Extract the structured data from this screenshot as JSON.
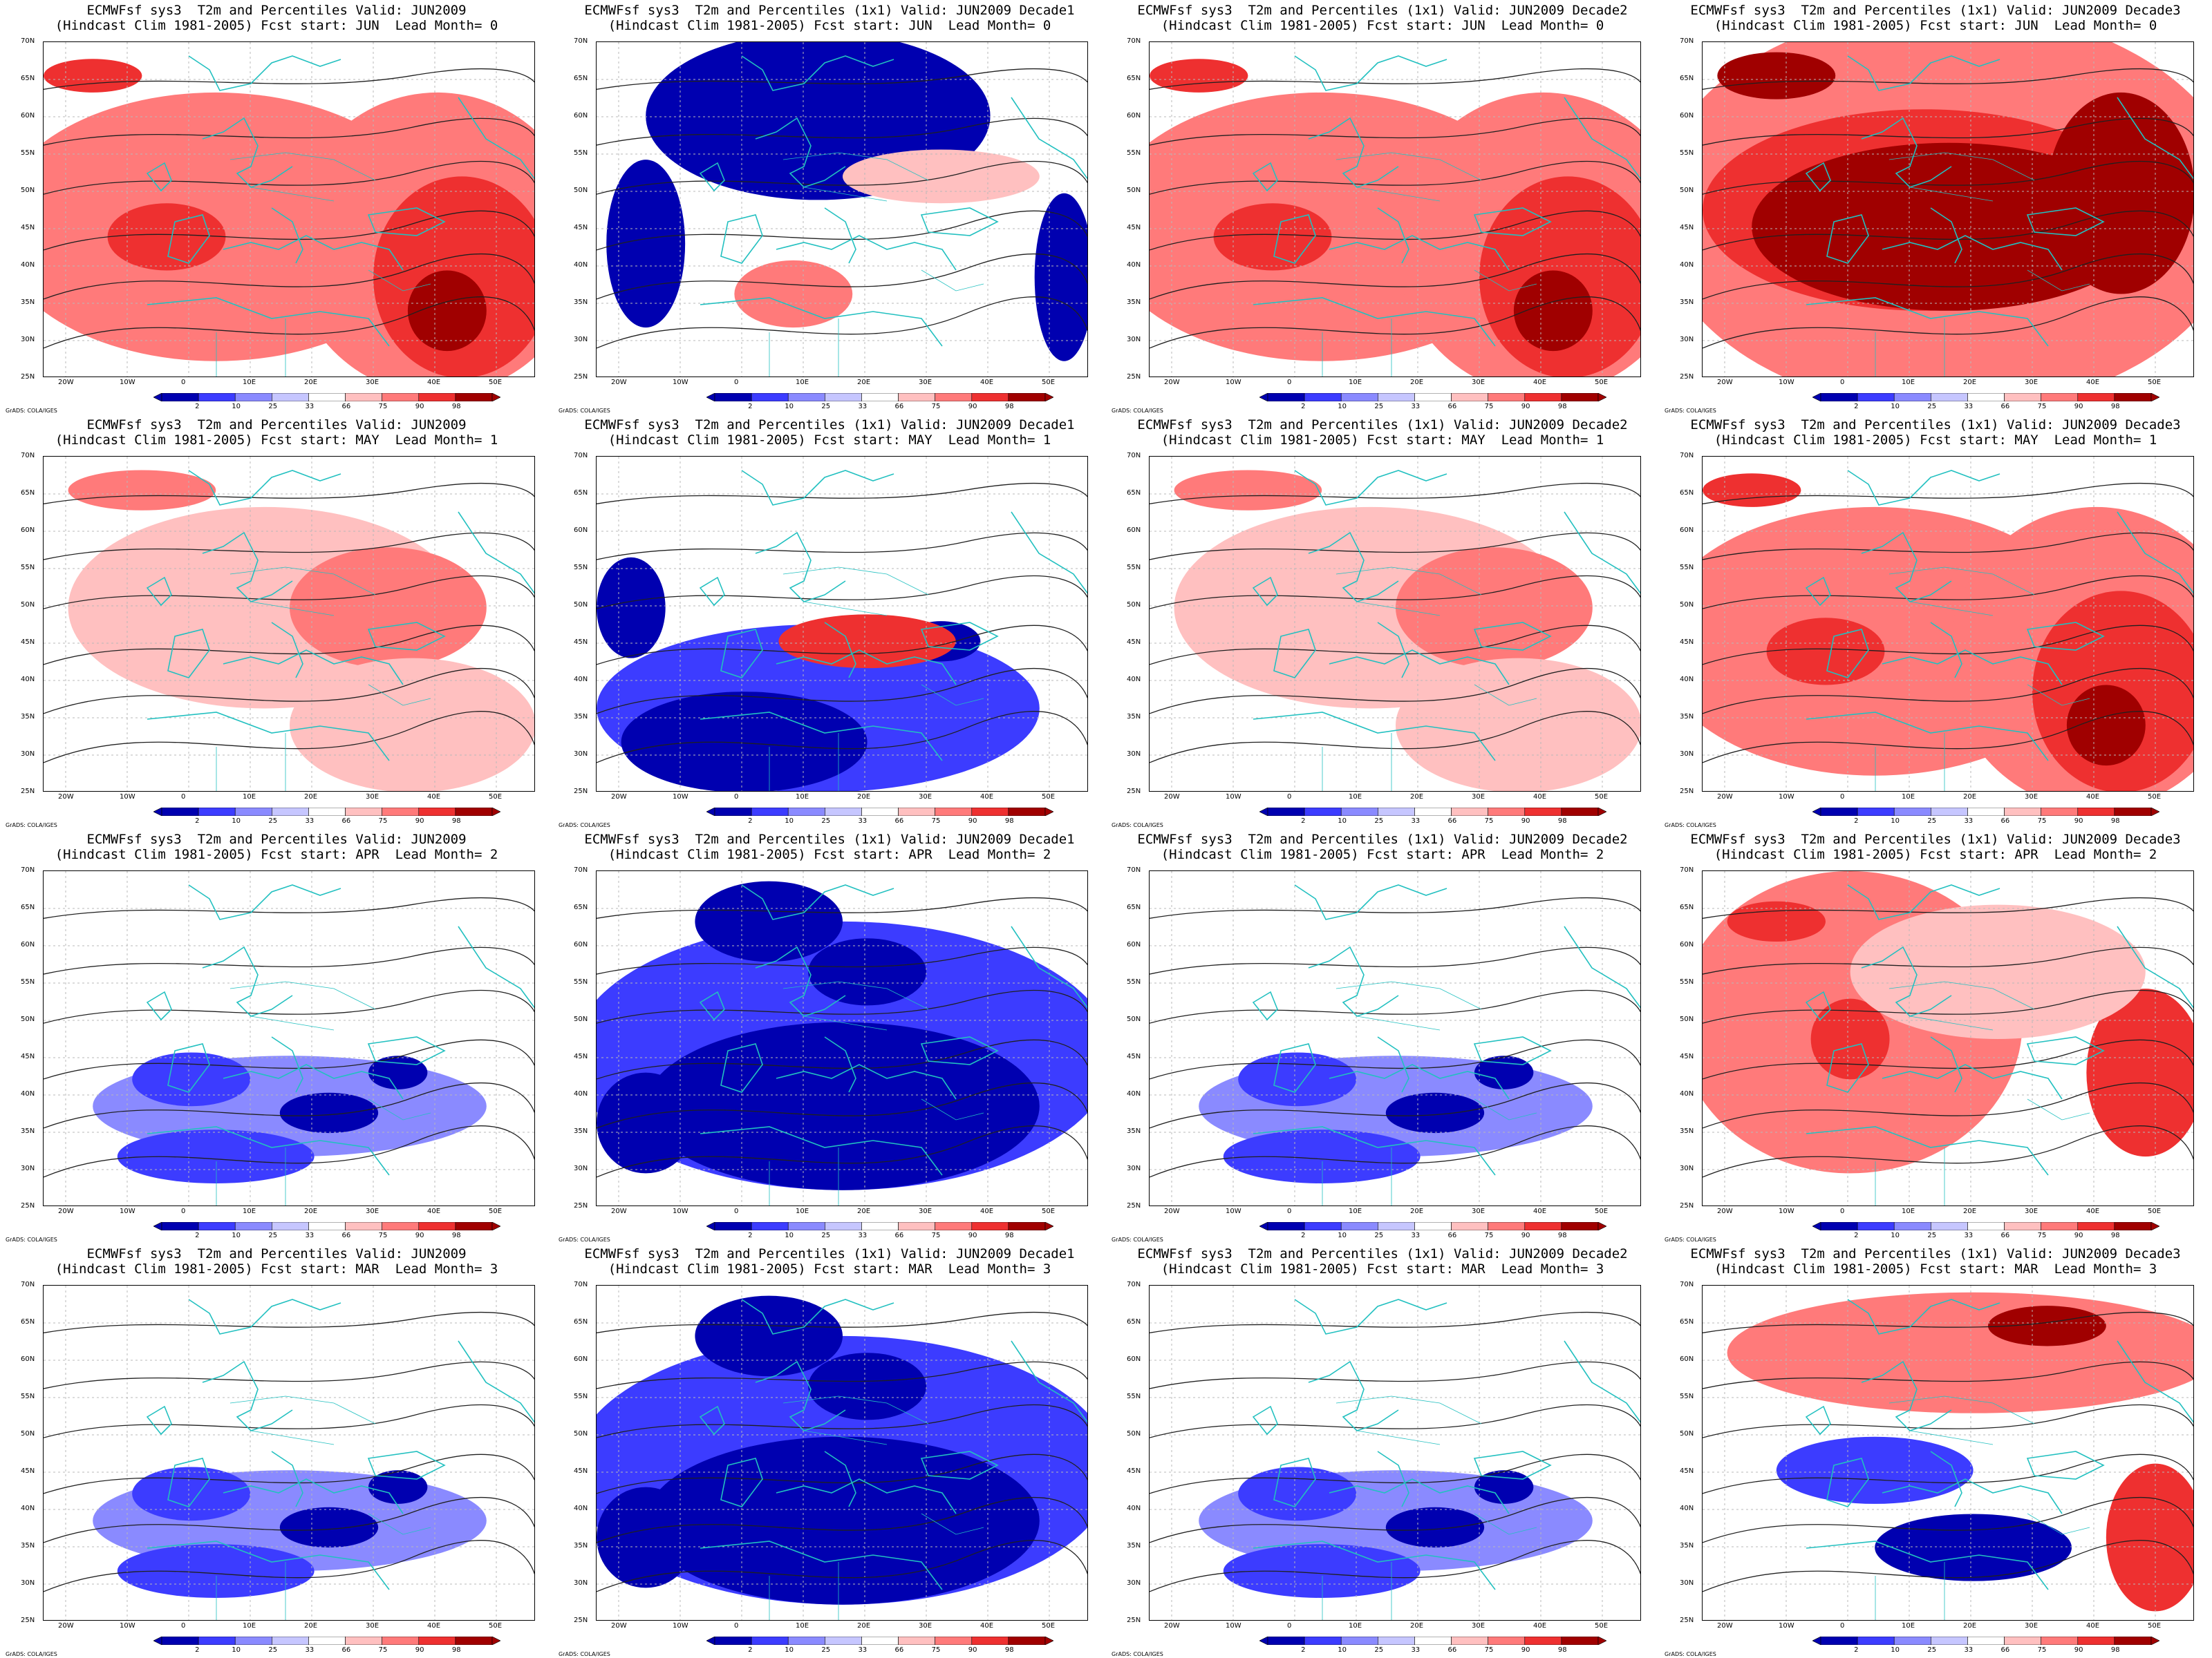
{
  "panels": [
    {
      "title_line1": "ECMWFsf sys3  T2m and Percentiles Valid: JUN2009",
      "title_line2": "(Hindcast Clim 1981-2005) Fcst start: JUN  Lead Month= 0",
      "pattern": "warm-strong"
    },
    {
      "title_line1": "ECMWFsf sys3  T2m and Percentiles (1x1) Valid: JUN2009 Decade1",
      "title_line2": "(Hindcast Clim 1981-2005) Fcst start: JUN  Lead Month= 0",
      "pattern": "cold-north"
    },
    {
      "title_line1": "ECMWFsf sys3  T2m and Percentiles (1x1) Valid: JUN2009 Decade2",
      "title_line2": "(Hindcast Clim 1981-2005) Fcst start: JUN  Lead Month= 0",
      "pattern": "warm-strong"
    },
    {
      "title_line1": "ECMWFsf sys3  T2m and Percentiles (1x1) Valid: JUN2009 Decade3",
      "title_line2": "(Hindcast Clim 1981-2005) Fcst start: JUN  Lead Month= 0",
      "pattern": "warm-extreme"
    },
    {
      "title_line1": "ECMWFsf sys3  T2m and Percentiles Valid: JUN2009",
      "title_line2": "(Hindcast Clim 1981-2005) Fcst start: MAY  Lead Month= 1",
      "pattern": "warm-mild"
    },
    {
      "title_line1": "ECMWFsf sys3  T2m and Percentiles (1x1) Valid: JUN2009 Decade1",
      "title_line2": "(Hindcast Clim 1981-2005) Fcst start: MAY  Lead Month= 1",
      "pattern": "cold-south"
    },
    {
      "title_line1": "ECMWFsf sys3  T2m and Percentiles (1x1) Valid: JUN2009 Decade2",
      "title_line2": "(Hindcast Clim 1981-2005) Fcst start: MAY  Lead Month= 1",
      "pattern": "warm-mild"
    },
    {
      "title_line1": "ECMWFsf sys3  T2m and Percentiles (1x1) Valid: JUN2009 Decade3",
      "title_line2": "(Hindcast Clim 1981-2005) Fcst start: MAY  Lead Month= 1",
      "pattern": "warm-strong"
    },
    {
      "title_line1": "ECMWFsf sys3  T2m and Percentiles Valid: JUN2009",
      "title_line2": "(Hindcast Clim 1981-2005) Fcst start: APR  Lead Month= 2",
      "pattern": "cold-med"
    },
    {
      "title_line1": "ECMWFsf sys3  T2m and Percentiles (1x1) Valid: JUN2009 Decade1",
      "title_line2": "(Hindcast Clim 1981-2005) Fcst start: APR  Lead Month= 2",
      "pattern": "cold-strong"
    },
    {
      "title_line1": "ECMWFsf sys3  T2m and Percentiles (1x1) Valid: JUN2009 Decade2",
      "title_line2": "(Hindcast Clim 1981-2005) Fcst start: APR  Lead Month= 2",
      "pattern": "cold-med"
    },
    {
      "title_line1": "ECMWFsf sys3  T2m and Percentiles (1x1) Valid: JUN2009 Decade3",
      "title_line2": "(Hindcast Clim 1981-2005) Fcst start: APR  Lead Month= 2",
      "pattern": "warm-west"
    },
    {
      "title_line1": "ECMWFsf sys3  T2m and Percentiles Valid: JUN2009",
      "title_line2": "(Hindcast Clim 1981-2005) Fcst start: MAR  Lead Month= 3",
      "pattern": "cold-med"
    },
    {
      "title_line1": "ECMWFsf sys3  T2m and Percentiles (1x1) Valid: JUN2009 Decade1",
      "title_line2": "(Hindcast Clim 1981-2005) Fcst start: MAR  Lead Month= 3",
      "pattern": "cold-strong"
    },
    {
      "title_line1": "ECMWFsf sys3  T2m and Percentiles (1x1) Valid: JUN2009 Decade2",
      "title_line2": "(Hindcast Clim 1981-2005) Fcst start: MAR  Lead Month= 3",
      "pattern": "cold-med"
    },
    {
      "title_line1": "ECMWFsf sys3  T2m and Percentiles (1x1) Valid: JUN2009 Decade3",
      "title_line2": "(Hindcast Clim 1981-2005) Fcst start: MAR  Lead Month= 3",
      "pattern": "warm-north"
    }
  ],
  "lat_labels": [
    "70N",
    "65N",
    "60N",
    "55N",
    "50N",
    "45N",
    "40N",
    "35N",
    "30N",
    "25N"
  ],
  "lon_labels": [
    "20W",
    "10W",
    "0",
    "10E",
    "20E",
    "30E",
    "40E",
    "50E"
  ],
  "colorbar": {
    "labels": [
      "2",
      "10",
      "25",
      "33",
      "66",
      "75",
      "90",
      "98"
    ],
    "colors": [
      "#0000b0",
      "#3c3cff",
      "#8a8aff",
      "#c6c6ff",
      "#ffffff",
      "#ffc0c0",
      "#ff7a7a",
      "#ee3030",
      "#a00000"
    ]
  },
  "credit": "GrADS: COLA/IGES",
  "colors": {
    "coastline": "#22c0c0",
    "contour": "#202020",
    "grid": "#b8b8b8"
  }
}
